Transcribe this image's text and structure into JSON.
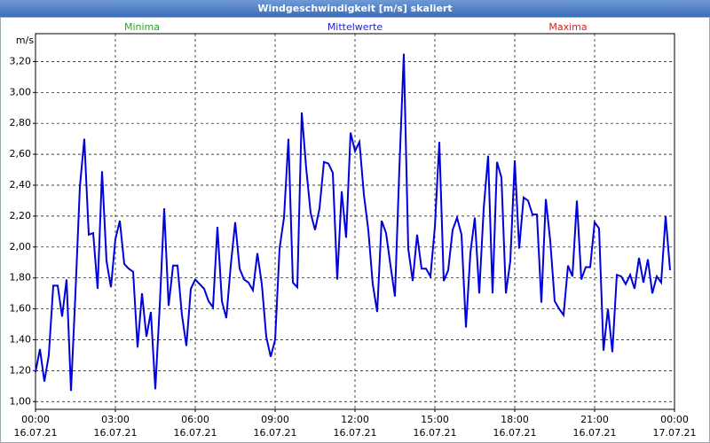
{
  "chart_data": {
    "type": "line",
    "title": "Windgeschwindigkeit [m/s] skaliert",
    "y_label": "m/s",
    "legend": [
      {
        "name": "Minima",
        "color": "#22aa22"
      },
      {
        "name": "Mittelwerte",
        "color": "#2222cc"
      },
      {
        "name": "Maxima",
        "color": "#cc2222"
      }
    ],
    "x": [
      0,
      10,
      20,
      30,
      40,
      50,
      60,
      70,
      80,
      90,
      100,
      110,
      120,
      130,
      140,
      150,
      160,
      170,
      180,
      190,
      200,
      210,
      220,
      230,
      240,
      250,
      260,
      270,
      280,
      290,
      300,
      310,
      320,
      330,
      340,
      350,
      360,
      370,
      380,
      390,
      400,
      410,
      420,
      430,
      440,
      450,
      460,
      470,
      480,
      490,
      500,
      510,
      520,
      530,
      540,
      550,
      560,
      570,
      580,
      590,
      600,
      610,
      620,
      630,
      640,
      650,
      660,
      670,
      680,
      690,
      700,
      710,
      720,
      730,
      740,
      750,
      760,
      770,
      780,
      790,
      800,
      810,
      820,
      830,
      840,
      850,
      860,
      870,
      880,
      890,
      900,
      910,
      920,
      930,
      940,
      950,
      960,
      970,
      980,
      990,
      1000,
      1010,
      1020,
      1030,
      1040,
      1050,
      1060,
      1070,
      1080,
      1090,
      1100,
      1110,
      1120,
      1130,
      1140,
      1150,
      1160,
      1170,
      1180,
      1190,
      1200,
      1210,
      1220,
      1230,
      1240,
      1250,
      1260,
      1270,
      1280,
      1290,
      1300,
      1310,
      1320,
      1330,
      1340,
      1350,
      1360,
      1370,
      1380,
      1390,
      1400,
      1410,
      1420,
      1430
    ],
    "series": [
      {
        "name": "Mittelwerte",
        "color": "#0000dd",
        "values": [
          1.19,
          1.34,
          1.13,
          1.3,
          1.75,
          1.75,
          1.55,
          1.79,
          1.07,
          1.7,
          2.39,
          2.7,
          2.08,
          2.09,
          1.73,
          2.49,
          1.91,
          1.74,
          2.05,
          2.17,
          1.89,
          1.86,
          1.84,
          1.35,
          1.7,
          1.42,
          1.58,
          1.08,
          1.62,
          2.25,
          1.62,
          1.88,
          1.88,
          1.56,
          1.36,
          1.73,
          1.79,
          1.76,
          1.73,
          1.65,
          1.61,
          2.13,
          1.65,
          1.54,
          1.88,
          2.16,
          1.86,
          1.79,
          1.77,
          1.72,
          1.96,
          1.76,
          1.42,
          1.29,
          1.4,
          1.99,
          2.19,
          2.7,
          1.77,
          1.74,
          2.87,
          2.51,
          2.22,
          2.11,
          2.25,
          2.55,
          2.54,
          2.48,
          1.79,
          2.36,
          2.06,
          2.74,
          2.62,
          2.68,
          2.34,
          2.11,
          1.76,
          1.58,
          2.17,
          2.09,
          1.88,
          1.68,
          2.51,
          3.25,
          1.99,
          1.78,
          2.08,
          1.86,
          1.86,
          1.81,
          2.13,
          2.68,
          1.78,
          1.85,
          2.11,
          2.19,
          2.08,
          1.48,
          1.96,
          2.19,
          1.7,
          2.25,
          2.59,
          1.7,
          2.55,
          2.45,
          1.7,
          1.91,
          2.56,
          1.99,
          2.32,
          2.3,
          2.21,
          2.21,
          1.64,
          2.31,
          2.04,
          1.65,
          1.6,
          1.56,
          1.88,
          1.81,
          2.3,
          1.79,
          1.87,
          1.87,
          2.16,
          2.12,
          1.33,
          1.6,
          1.32,
          1.82,
          1.81,
          1.76,
          1.82,
          1.73,
          1.93,
          1.77,
          1.92,
          1.7,
          1.81,
          1.77,
          2.2,
          1.85
        ]
      }
    ],
    "xlim": [
      0,
      1440
    ],
    "xticks": [
      {
        "value": 0,
        "label": "00:00 16.07.21"
      },
      {
        "value": 180,
        "label": "03:00 16.07.21"
      },
      {
        "value": 360,
        "label": "06:00 16.07.21"
      },
      {
        "value": 540,
        "label": "09:00 16.07.21"
      },
      {
        "value": 720,
        "label": "12:00 16.07.21"
      },
      {
        "value": 900,
        "label": "15:00 16.07.21"
      },
      {
        "value": 1080,
        "label": "18:00 16.07.21"
      },
      {
        "value": 1260,
        "label": "21:00 16.07.21"
      },
      {
        "value": 1440,
        "label": "00:00 17.07.21"
      }
    ],
    "ylim": [
      0.95,
      3.38
    ],
    "yticks": [
      {
        "value": 1.0,
        "label": "1,00"
      },
      {
        "value": 1.2,
        "label": "1,20"
      },
      {
        "value": 1.4,
        "label": "1,40"
      },
      {
        "value": 1.6,
        "label": "1,60"
      },
      {
        "value": 1.8,
        "label": "1,80"
      },
      {
        "value": 2.0,
        "label": "2,00"
      },
      {
        "value": 2.2,
        "label": "2,20"
      },
      {
        "value": 2.4,
        "label": "2,40"
      },
      {
        "value": 2.6,
        "label": "2,60"
      },
      {
        "value": 2.8,
        "label": "2,80"
      },
      {
        "value": 3.0,
        "label": "3,00"
      },
      {
        "value": 3.2,
        "label": "3,20"
      }
    ],
    "grid": true
  }
}
